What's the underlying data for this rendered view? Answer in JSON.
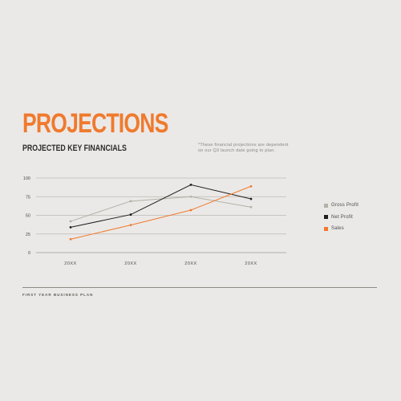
{
  "page": {
    "title": "PROJECTIONS",
    "subtitle": "PROJECTED KEY FINANCIALS",
    "note": "*These financial projections are dependent on our Q3 launch date going to plan.",
    "footer": "FIRST YEAR BUSINESS PLAN",
    "title_color": "#f07a2d"
  },
  "chart_data": {
    "type": "line",
    "categories": [
      "20XX",
      "20XX",
      "20XX",
      "20XX"
    ],
    "ylim": [
      0,
      100
    ],
    "yticks": [
      0,
      25,
      50,
      75,
      100
    ],
    "grid": true,
    "legend_position": "right",
    "series": [
      {
        "name": "Gross Profit",
        "values": [
          42,
          69,
          75,
          61
        ],
        "color": "#b5b1a8"
      },
      {
        "name": "Net Profit",
        "values": [
          34,
          51,
          91,
          72
        ],
        "color": "#1f1f1f"
      },
      {
        "name": "Sales",
        "values": [
          18,
          37,
          57,
          89
        ],
        "color": "#f07a2d"
      }
    ]
  }
}
